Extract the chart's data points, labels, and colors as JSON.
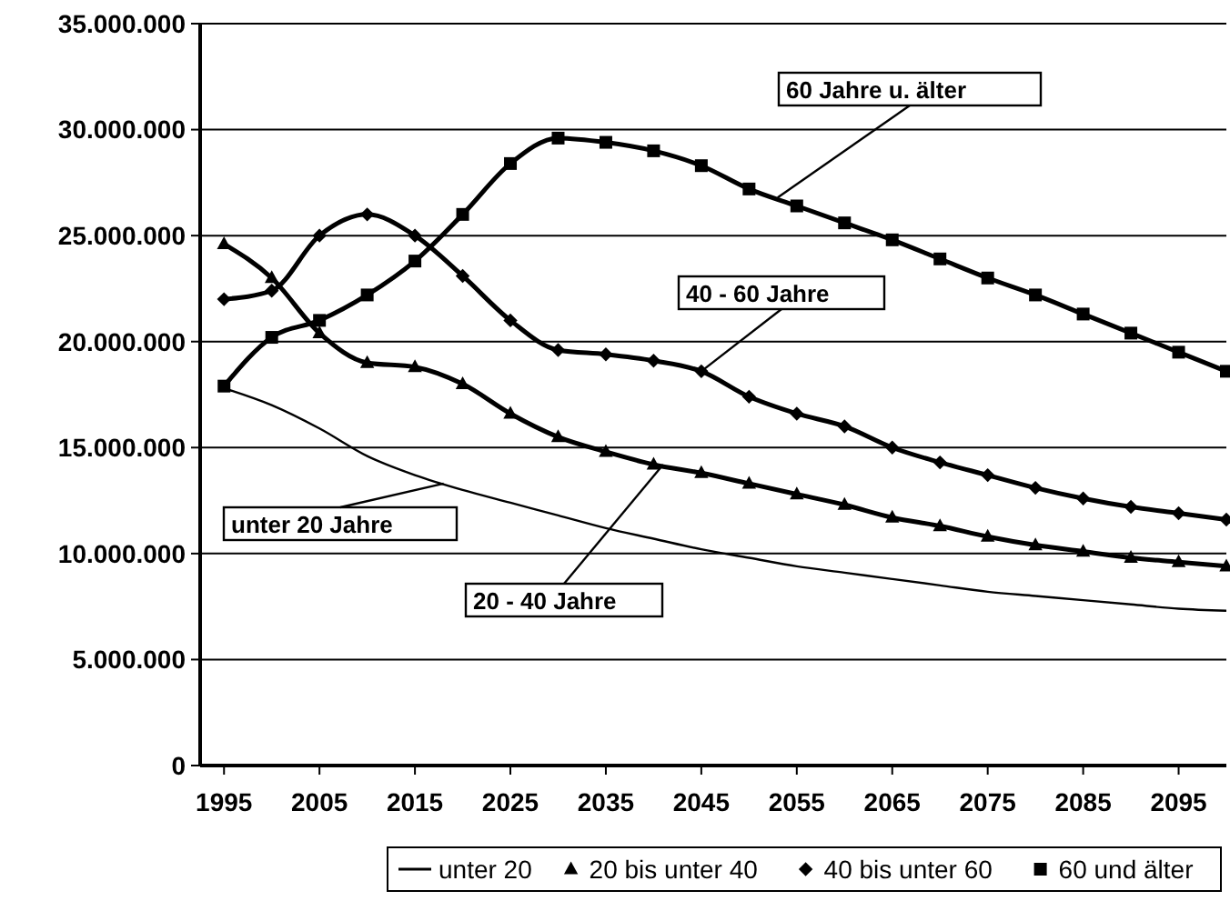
{
  "chart_data": {
    "type": "line",
    "x": [
      1995,
      2000,
      2005,
      2010,
      2015,
      2020,
      2025,
      2030,
      2035,
      2040,
      2045,
      2050,
      2055,
      2060,
      2065,
      2070,
      2075,
      2080,
      2085,
      2090,
      2095,
      2100
    ],
    "xlim": [
      1992.5,
      2100
    ],
    "xticks": [
      1995,
      2005,
      2015,
      2025,
      2035,
      2045,
      2055,
      2065,
      2075,
      2085,
      2095
    ],
    "ylim": [
      0,
      35000000
    ],
    "yticks": [
      {
        "value": 0,
        "label": "0"
      },
      {
        "value": 5000000,
        "label": "5.000.000"
      },
      {
        "value": 10000000,
        "label": "10.000.000"
      },
      {
        "value": 15000000,
        "label": "15.000.000"
      },
      {
        "value": 20000000,
        "label": "20.000.000"
      },
      {
        "value": 25000000,
        "label": "25.000.000"
      },
      {
        "value": 30000000,
        "label": "30.000.000"
      },
      {
        "value": 35000000,
        "label": "35.000.000"
      }
    ],
    "grid": "y",
    "legend": "bottom",
    "series": [
      {
        "name": "unter 20",
        "color": "#000000",
        "marker": "none",
        "values": [
          17800000,
          17000000,
          15900000,
          14600000,
          13700000,
          13000000,
          12400000,
          11800000,
          11200000,
          10700000,
          10200000,
          9800000,
          9400000,
          9100000,
          8800000,
          8500000,
          8200000,
          8000000,
          7800000,
          7600000,
          7400000,
          7300000
        ]
      },
      {
        "name": "20 bis unter 40",
        "color": "#000000",
        "marker": "triangle",
        "values": [
          24600000,
          23000000,
          20400000,
          19000000,
          18800000,
          18000000,
          16600000,
          15500000,
          14800000,
          14200000,
          13800000,
          13300000,
          12800000,
          12300000,
          11700000,
          11300000,
          10800000,
          10400000,
          10100000,
          9800000,
          9600000,
          9400000
        ]
      },
      {
        "name": "40 bis unter 60",
        "color": "#000000",
        "marker": "diamond",
        "values": [
          22000000,
          22400000,
          25000000,
          26000000,
          25000000,
          23100000,
          21000000,
          19600000,
          19400000,
          19100000,
          18600000,
          17400000,
          16600000,
          16000000,
          15000000,
          14300000,
          13700000,
          13100000,
          12600000,
          12200000,
          11900000,
          11600000
        ]
      },
      {
        "name": "60 und älter",
        "color": "#000000",
        "marker": "square",
        "values": [
          17900000,
          20200000,
          21000000,
          22200000,
          23800000,
          26000000,
          28400000,
          29600000,
          29400000,
          29000000,
          28300000,
          27200000,
          26400000,
          25600000,
          24800000,
          23900000,
          23000000,
          22200000,
          21300000,
          20400000,
          19500000,
          18600000
        ]
      }
    ],
    "annotations": [
      {
        "text": "60 Jahre u. älter",
        "x": 2053,
        "y": 26800000
      },
      {
        "text": "40 - 60 Jahre",
        "x": 2045,
        "y": 18600000
      },
      {
        "text": "unter 20 Jahre",
        "x": 2018,
        "y": 13300000
      },
      {
        "text": "20 - 40 Jahre",
        "x": 2041,
        "y": 14200000
      }
    ]
  }
}
